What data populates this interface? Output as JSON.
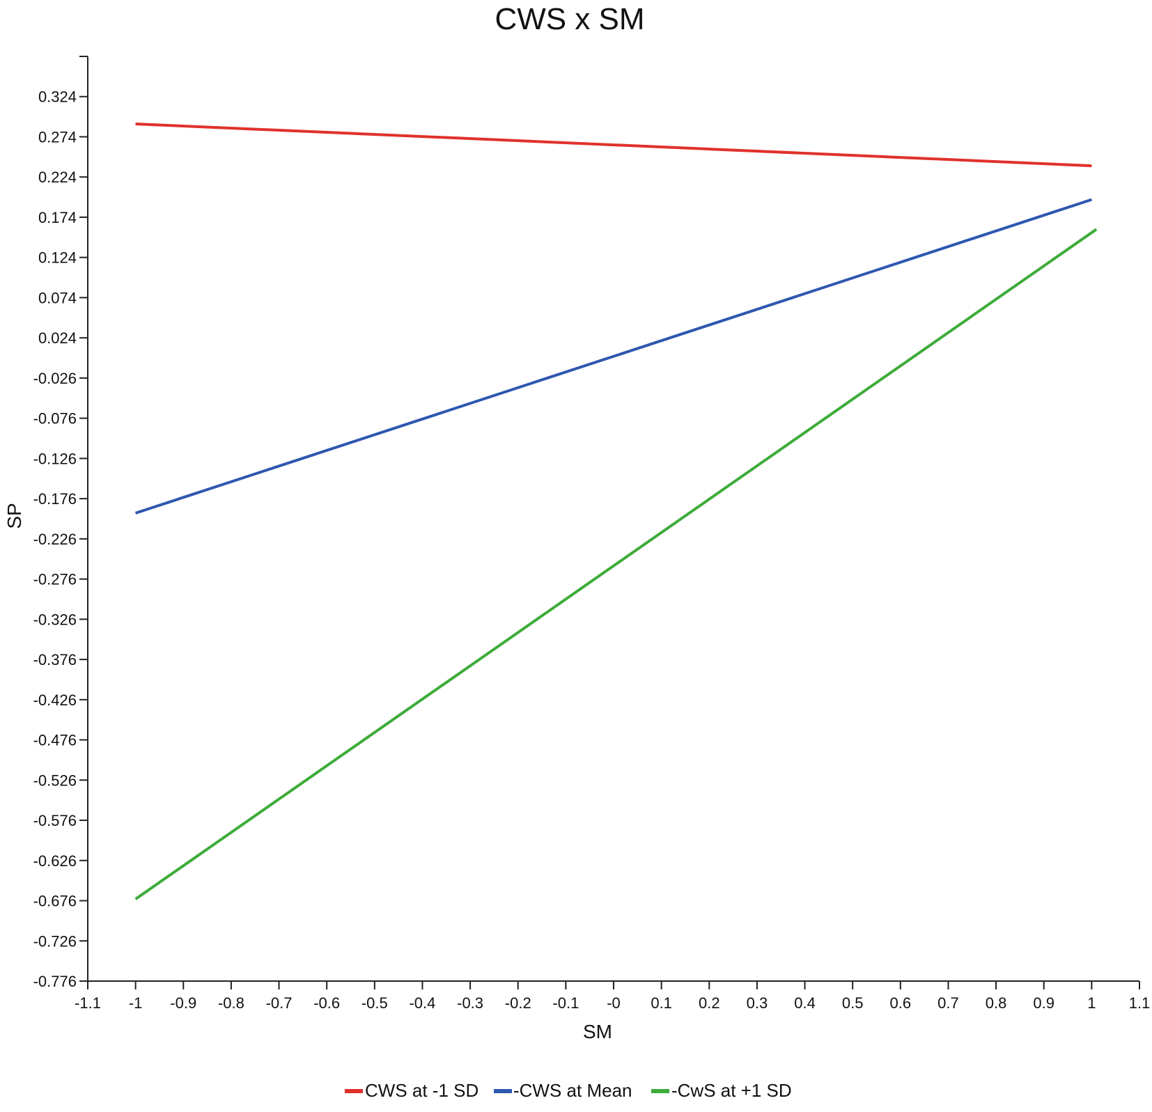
{
  "chart_data": {
    "type": "line",
    "title": "CWS x SM",
    "xlabel": "SM",
    "ylabel": "SP",
    "xlim": [
      -1.1,
      1.1
    ],
    "ylim": [
      -0.776,
      0.374
    ],
    "x_ticks": [
      "-1.1",
      "-1",
      "-0.9",
      "-0.8",
      "-0.7",
      "-0.6",
      "-0.5",
      "-0.4",
      "-0.3",
      "-0.2",
      "-0.1",
      "-0",
      "0.1",
      "0.2",
      "0.3",
      "0.4",
      "0.5",
      "0.6",
      "0.7",
      "0.8",
      "0.9",
      "1",
      "1.1"
    ],
    "x_tick_values": [
      -1.1,
      -1.0,
      -0.9,
      -0.8,
      -0.7,
      -0.6,
      -0.5,
      -0.4,
      -0.3,
      -0.2,
      -0.1,
      0.0,
      0.1,
      0.2,
      0.3,
      0.4,
      0.5,
      0.6,
      0.7,
      0.8,
      0.9,
      1.0,
      1.1
    ],
    "y_ticks": [
      "0.324",
      "0.274",
      "0.224",
      "0.174",
      "0.124",
      "0.074",
      "0.024",
      "-0.026",
      "-0.076",
      "-0.126",
      "-0.176",
      "-0.226",
      "-0.276",
      "-0.326",
      "-0.376",
      "-0.426",
      "-0.476",
      "-0.526",
      "-0.576",
      "-0.626",
      "-0.676",
      "-0.726",
      "-0.776"
    ],
    "y_tick_values": [
      0.324,
      0.274,
      0.224,
      0.174,
      0.124,
      0.074,
      0.024,
      -0.026,
      -0.076,
      -0.126,
      -0.176,
      -0.226,
      -0.276,
      -0.326,
      -0.376,
      -0.426,
      -0.476,
      -0.526,
      -0.576,
      -0.626,
      -0.676,
      -0.726,
      -0.776
    ],
    "grid": false,
    "legend_position": "bottom",
    "series": [
      {
        "name": "CWS at -1 SD",
        "color": "#e0312b",
        "x": [
          -1.0,
          1.0
        ],
        "y": [
          0.29,
          0.238
        ]
      },
      {
        "name": "-CWS at Mean",
        "color": "#2e57b0",
        "x": [
          -1.0,
          1.0
        ],
        "y": [
          -0.194,
          0.196
        ]
      },
      {
        "name": "-CwS at +1 SD",
        "color": "#3eab3a",
        "x": [
          -1.0,
          1.01
        ],
        "y": [
          -0.674,
          0.159
        ]
      }
    ]
  }
}
